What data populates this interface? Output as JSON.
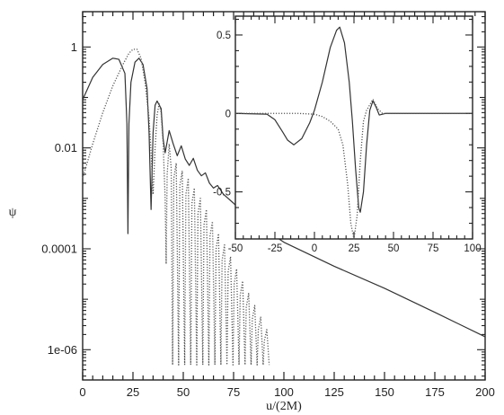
{
  "chart_data": [
    {
      "type": "line",
      "panel": "main",
      "xlabel": "u/(2M)",
      "ylabel": "ψ",
      "xlim": [
        0,
        200
      ],
      "ylim_log10": [
        -6.6,
        0.7
      ],
      "yscale": "log",
      "x_ticks": [
        0,
        25,
        50,
        75,
        100,
        125,
        150,
        175,
        200
      ],
      "y_ticks": [
        {
          "value": 1,
          "label": "1"
        },
        {
          "value": 0.01,
          "label": "0.01"
        },
        {
          "value": 0.0001,
          "label": "0.0001"
        },
        {
          "value": 1e-06,
          "label": "1e-06"
        }
      ],
      "series": [
        {
          "style": "solid",
          "color": "#333333",
          "points": [
            [
              0,
              0.09
            ],
            [
              5,
              0.25
            ],
            [
              10,
              0.45
            ],
            [
              15,
              0.6
            ],
            [
              18,
              0.57
            ],
            [
              21,
              0.3
            ],
            [
              22,
              0.03
            ],
            [
              22.5,
              0.0002
            ],
            [
              23,
              0.03
            ],
            [
              24,
              0.2
            ],
            [
              26,
              0.5
            ],
            [
              28,
              0.6
            ],
            [
              30,
              0.45
            ],
            [
              32,
              0.15
            ],
            [
              33,
              0.02
            ],
            [
              34,
              0.0006
            ],
            [
              35,
              0.02
            ],
            [
              36,
              0.07
            ],
            [
              37,
              0.085
            ],
            [
              39,
              0.06
            ],
            [
              40,
              0.015
            ],
            [
              41,
              0.008
            ],
            [
              43,
              0.022
            ],
            [
              45,
              0.012
            ],
            [
              47,
              0.007
            ],
            [
              49,
              0.011
            ],
            [
              51,
              0.006
            ],
            [
              53,
              0.0045
            ],
            [
              55,
              0.0062
            ],
            [
              57,
              0.0036
            ],
            [
              59,
              0.0028
            ],
            [
              61,
              0.0032
            ],
            [
              63,
              0.002
            ],
            [
              65,
              0.0016
            ],
            [
              67,
              0.0018
            ],
            [
              70,
              0.0012
            ],
            [
              75,
              0.0008
            ],
            [
              80,
              0.0005
            ],
            [
              90,
              0.00025
            ],
            [
              100,
              0.000135
            ],
            [
              125,
              4.5e-05
            ],
            [
              150,
              1.65e-05
            ],
            [
              175,
              5.5e-06
            ],
            [
              200,
              1.8e-06
            ]
          ]
        },
        {
          "style": "dotted",
          "color": "#555555",
          "points": [
            [
              0,
              0.0025
            ],
            [
              5,
              0.012
            ],
            [
              10,
              0.05
            ],
            [
              15,
              0.17
            ],
            [
              20,
              0.45
            ],
            [
              23,
              0.75
            ],
            [
              25,
              0.9
            ],
            [
              27,
              0.9
            ],
            [
              29,
              0.6
            ],
            [
              31,
              0.2
            ],
            [
              33,
              0.04
            ],
            [
              34,
              0.008
            ],
            [
              35,
              0.0012
            ],
            [
              36,
              0.01
            ],
            [
              37,
              0.045
            ],
            [
              38,
              0.075
            ],
            [
              39,
              0.05
            ],
            [
              40,
              0.012
            ],
            [
              41,
              0.001
            ],
            [
              41.5,
              5e-05
            ],
            [
              42,
              0.003
            ],
            [
              43,
              0.012
            ],
            [
              44,
              0.004
            ],
            [
              44.7,
              5e-07
            ],
            [
              45.3,
              0.0025
            ],
            [
              46.5,
              0.005
            ],
            [
              47.7,
              5e-07
            ],
            [
              48.3,
              0.0018
            ],
            [
              49.5,
              0.0035
            ],
            [
              50.7,
              5e-07
            ],
            [
              51.3,
              0.0012
            ],
            [
              52.5,
              0.0025
            ],
            [
              53.7,
              5e-07
            ],
            [
              54.3,
              0.0008
            ],
            [
              55.5,
              0.0016
            ],
            [
              56.7,
              5e-07
            ],
            [
              57.3,
              0.0005
            ],
            [
              58.5,
              0.001
            ],
            [
              59.7,
              5e-07
            ],
            [
              60.3,
              0.0003
            ],
            [
              61.5,
              0.0006
            ],
            [
              62.7,
              5e-07
            ],
            [
              63.3,
              0.00018
            ],
            [
              64.5,
              0.00035
            ],
            [
              65.7,
              5e-07
            ],
            [
              66.3,
              0.0001
            ],
            [
              67.5,
              0.0002
            ],
            [
              68.7,
              5e-07
            ],
            [
              69.3,
              6e-05
            ],
            [
              70.5,
              0.00012
            ],
            [
              71.7,
              5e-07
            ],
            [
              72.3,
              3.5e-05
            ],
            [
              73.5,
              7e-05
            ],
            [
              74.7,
              5e-07
            ],
            [
              75.3,
              2e-05
            ],
            [
              76.5,
              4e-05
            ],
            [
              77.7,
              5e-07
            ],
            [
              78.3,
              1.2e-05
            ],
            [
              79.5,
              2.3e-05
            ],
            [
              80.7,
              5e-07
            ],
            [
              81.3,
              7e-06
            ],
            [
              82.5,
              1.3e-05
            ],
            [
              83.7,
              5e-07
            ],
            [
              84.3,
              4e-06
            ],
            [
              85.5,
              7.5e-06
            ],
            [
              86.7,
              5e-07
            ],
            [
              87.3,
              2.5e-06
            ],
            [
              88.5,
              4.5e-06
            ],
            [
              89.7,
              5e-07
            ],
            [
              90.3,
              1.5e-06
            ],
            [
              91.5,
              2.5e-06
            ],
            [
              92.7,
              5e-07
            ]
          ]
        }
      ]
    },
    {
      "type": "line",
      "panel": "inset",
      "xlim": [
        -50,
        100
      ],
      "ylim": [
        -0.8,
        0.62
      ],
      "x_ticks": [
        -50,
        -25,
        0,
        25,
        50,
        75,
        100
      ],
      "y_ticks": [
        {
          "value": 0.5,
          "label": "0.5"
        },
        {
          "value": 0,
          "label": "0"
        },
        {
          "value": -0.5,
          "label": "-0.5"
        }
      ],
      "series": [
        {
          "style": "solid",
          "color": "#333333",
          "points": [
            [
              -50,
              0
            ],
            [
              -30,
              -0.005
            ],
            [
              -25,
              -0.04
            ],
            [
              -20,
              -0.12
            ],
            [
              -17,
              -0.17
            ],
            [
              -13,
              -0.2
            ],
            [
              -8,
              -0.16
            ],
            [
              -3,
              -0.06
            ],
            [
              0,
              0.02
            ],
            [
              5,
              0.2
            ],
            [
              10,
              0.42
            ],
            [
              14,
              0.53
            ],
            [
              16,
              0.55
            ],
            [
              19,
              0.45
            ],
            [
              22,
              0.2
            ],
            [
              24,
              -0.05
            ],
            [
              26,
              -0.35
            ],
            [
              28,
              -0.6
            ],
            [
              29,
              -0.63
            ],
            [
              31,
              -0.5
            ],
            [
              33,
              -0.2
            ],
            [
              35,
              0.02
            ],
            [
              37,
              0.08
            ],
            [
              39,
              0.04
            ],
            [
              41,
              -0.01
            ],
            [
              45,
              0
            ],
            [
              100,
              0
            ]
          ]
        },
        {
          "style": "dotted",
          "color": "#555555",
          "points": [
            [
              -50,
              0
            ],
            [
              -10,
              0
            ],
            [
              0,
              -0.005
            ],
            [
              5,
              -0.02
            ],
            [
              10,
              -0.05
            ],
            [
              15,
              -0.1
            ],
            [
              18,
              -0.2
            ],
            [
              21,
              -0.45
            ],
            [
              23,
              -0.7
            ],
            [
              25,
              -0.8
            ],
            [
              27,
              -0.65
            ],
            [
              29,
              -0.3
            ],
            [
              31,
              -0.05
            ],
            [
              33,
              0.02
            ],
            [
              37,
              0.09
            ],
            [
              40,
              0.03
            ],
            [
              43,
              0
            ],
            [
              100,
              0
            ]
          ]
        }
      ]
    }
  ]
}
